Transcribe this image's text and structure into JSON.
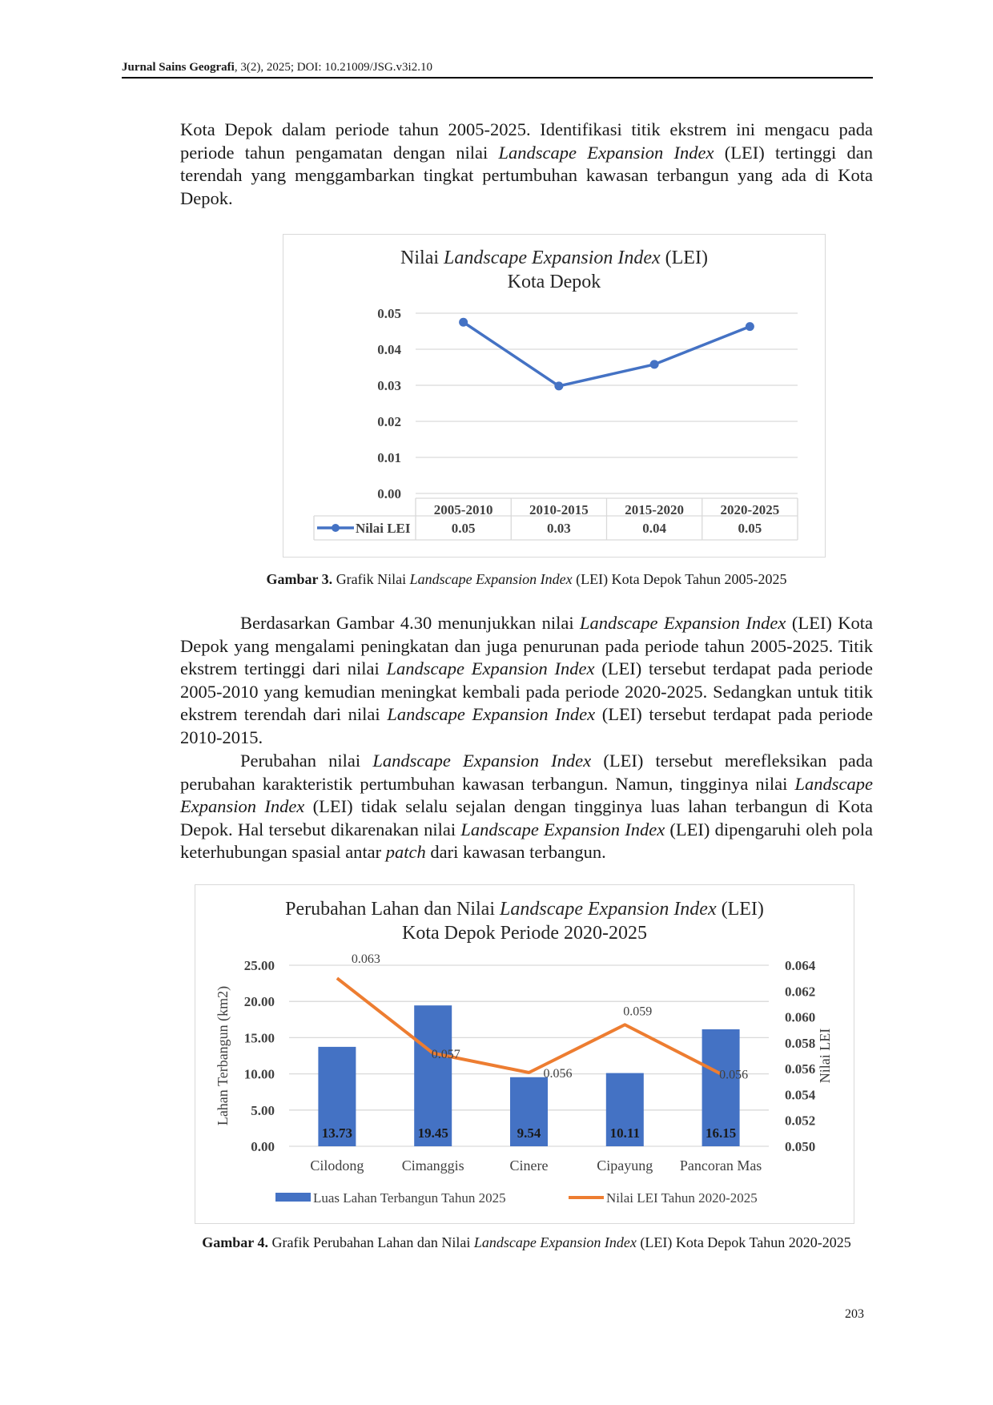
{
  "header": {
    "journal": "Jurnal Sains Geografi",
    "citation": ", 3(2), 2025; DOI: 10.21009/JSG.v3i2.10"
  },
  "paragraphs": {
    "p1": [
      {
        "t": "Kota Depok dalam periode tahun 2005-2025. Identifikasi titik ekstrem ini mengacu pada periode tahun pengamatan dengan nilai "
      },
      {
        "t": "Landscape Expansion Index",
        "i": true
      },
      {
        "t": " (LEI) tertinggi dan terendah yang menggambarkan tingkat pertumbuhan kawasan terbangun yang ada di Kota Depok."
      }
    ],
    "p2": [
      {
        "t": "Berdasarkan Gambar 4.30 menunjukkan nilai "
      },
      {
        "t": "Landscape Expansion Index",
        "i": true
      },
      {
        "t": " (LEI) Kota Depok yang mengalami peningkatan dan juga penurunan pada periode tahun 2005-2025. Titik ekstrem tertinggi dari nilai "
      },
      {
        "t": "Landscape Expansion Index",
        "i": true
      },
      {
        "t": " (LEI) tersebut terdapat pada periode 2005-2010 yang kemudian meningkat kembali pada periode 2020-2025. Sedangkan untuk titik ekstrem terendah dari nilai "
      },
      {
        "t": "Landscape Expansion Index",
        "i": true
      },
      {
        "t": " (LEI) tersebut terdapat pada periode 2010-2015."
      }
    ],
    "p3": [
      {
        "t": "Perubahan nilai "
      },
      {
        "t": "Landscape Expansion Index",
        "i": true
      },
      {
        "t": " (LEI) tersebut merefleksikan pada perubahan karakteristik pertumbuhan kawasan terbangun. Namun, tingginya nilai "
      },
      {
        "t": "Landscape Expansion Index",
        "i": true
      },
      {
        "t": " (LEI) tidak selalu sejalan dengan tingginya luas lahan terbangun di Kota Depok. Hal tersebut dikarenakan nilai "
      },
      {
        "t": "Landscape Expansion Index",
        "i": true
      },
      {
        "t": " (LEI) dipengaruhi oleh pola keterhubungan spasial antar "
      },
      {
        "t": "patch",
        "i": true
      },
      {
        "t": " dari kawasan terbangun."
      }
    ]
  },
  "figure3": {
    "caption_label": "Gambar 3.",
    "caption_parts": [
      {
        "t": " Grafik Nilai "
      },
      {
        "t": "Landscape Expansion Index",
        "i": true
      },
      {
        "t": " (LEI) Kota Depok Tahun 2005-2025"
      }
    ]
  },
  "figure4": {
    "caption_label": "Gambar 4.",
    "caption_parts": [
      {
        "t": " Grafik Perubahan Lahan dan Nilai "
      },
      {
        "t": "Landscape Expansion Index",
        "i": true
      },
      {
        "t": " (LEI) Kota Depok Tahun 2020-2025"
      }
    ]
  },
  "page_number": "203",
  "chart_data": [
    {
      "type": "line",
      "title_line1_pre": "Nilai ",
      "title_line1_italic": "Landscape Expansion Index",
      "title_line1_post": " (LEI)",
      "title_line2": "Kota Depok",
      "categories": [
        "2005-2010",
        "2010-2015",
        "2015-2020",
        "2020-2025"
      ],
      "series": [
        {
          "name": "Nilai LEI",
          "values": [
            0.0475,
            0.0298,
            0.0358,
            0.0463
          ],
          "table_labels": [
            "0.05",
            "0.03",
            "0.04",
            "0.05"
          ],
          "color": "#4472c4"
        }
      ],
      "ylim": [
        0,
        0.05
      ],
      "yticks": [
        "0.00",
        "0.01",
        "0.02",
        "0.03",
        "0.04",
        "0.05"
      ],
      "grid": true,
      "data_table": true
    },
    {
      "type": "bar",
      "title_line1_pre": "Perubahan Lahan dan Nilai ",
      "title_line1_italic": "Landscape Expansion Index",
      "title_line1_post": " (LEI)",
      "title_line2": "Kota Depok Periode 2020-2025",
      "categories": [
        "Cilodong",
        "Cimanggis",
        "Cinere",
        "Cipayung",
        "Pancoran Mas"
      ],
      "series": [
        {
          "name": "Luas Lahan Terbangun Tahun 2025",
          "type": "bar",
          "axis": "left",
          "values": [
            13.73,
            19.45,
            9.54,
            10.11,
            16.15
          ],
          "labels": [
            "13.73",
            "19.45",
            "9.54",
            "10.11",
            "16.15"
          ],
          "color": "#4472c4"
        },
        {
          "name": "Nilai LEI Tahun 2020-2025",
          "type": "line",
          "axis": "right",
          "values": [
            0.063,
            0.0572,
            0.0557,
            0.0594,
            0.0556
          ],
          "labels": [
            "0.063",
            "0.057",
            "0.056",
            "0.059",
            "0.056"
          ],
          "color": "#ed7d31"
        }
      ],
      "ylabel": "Lahan Terbangun (km2)",
      "y2label": "Nilai LEI",
      "ylim": [
        0,
        25
      ],
      "yticks": [
        "0.00",
        "5.00",
        "10.00",
        "15.00",
        "20.00",
        "25.00"
      ],
      "y2lim": [
        0.05,
        0.064
      ],
      "y2ticks": [
        "0.050",
        "0.052",
        "0.054",
        "0.056",
        "0.058",
        "0.060",
        "0.062",
        "0.064"
      ],
      "grid": true,
      "legend": "bottom"
    }
  ]
}
